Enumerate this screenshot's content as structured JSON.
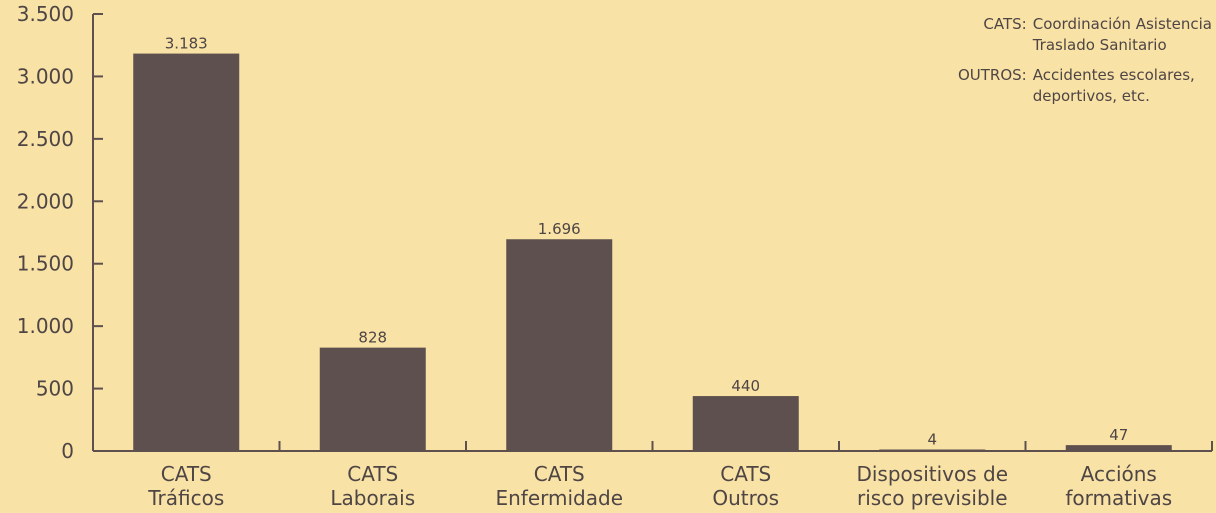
{
  "chart_data": {
    "type": "bar",
    "categories": [
      [
        "CATS",
        "Tráficos"
      ],
      [
        "CATS",
        "Laborais"
      ],
      [
        "CATS",
        "Enfermidade"
      ],
      [
        "CATS",
        "Outros"
      ],
      [
        "Dispositivos de",
        "risco previsible"
      ],
      [
        "Accións",
        "formativas"
      ]
    ],
    "values": [
      3183,
      828,
      1696,
      440,
      4,
      47
    ],
    "value_labels": [
      "3.183",
      "828",
      "1.696",
      "440",
      "4",
      "47"
    ],
    "ylim": [
      0,
      3500
    ],
    "yticks": [
      0,
      500,
      1000,
      1500,
      2000,
      2500,
      3000,
      3500
    ],
    "ytick_labels": [
      "0",
      "500",
      "1.000",
      "1.500",
      "2.000",
      "2.500",
      "3.000",
      "3.500"
    ],
    "title": "",
    "xlabel": "",
    "ylabel": "",
    "grid": false,
    "bar_color": "#5e504e",
    "axis_color": "#5e504e",
    "background_color": "#f9e2a6",
    "text_color": "#4e4545"
  },
  "legend": {
    "placement": "top-right",
    "items": [
      {
        "key": "CATS:",
        "lines": [
          "Coordinación Asistencia",
          "Traslado Sanitario"
        ]
      },
      {
        "key": "OUTROS:",
        "lines": [
          "Accidentes escolares,",
          "deportivos, etc."
        ]
      }
    ]
  }
}
